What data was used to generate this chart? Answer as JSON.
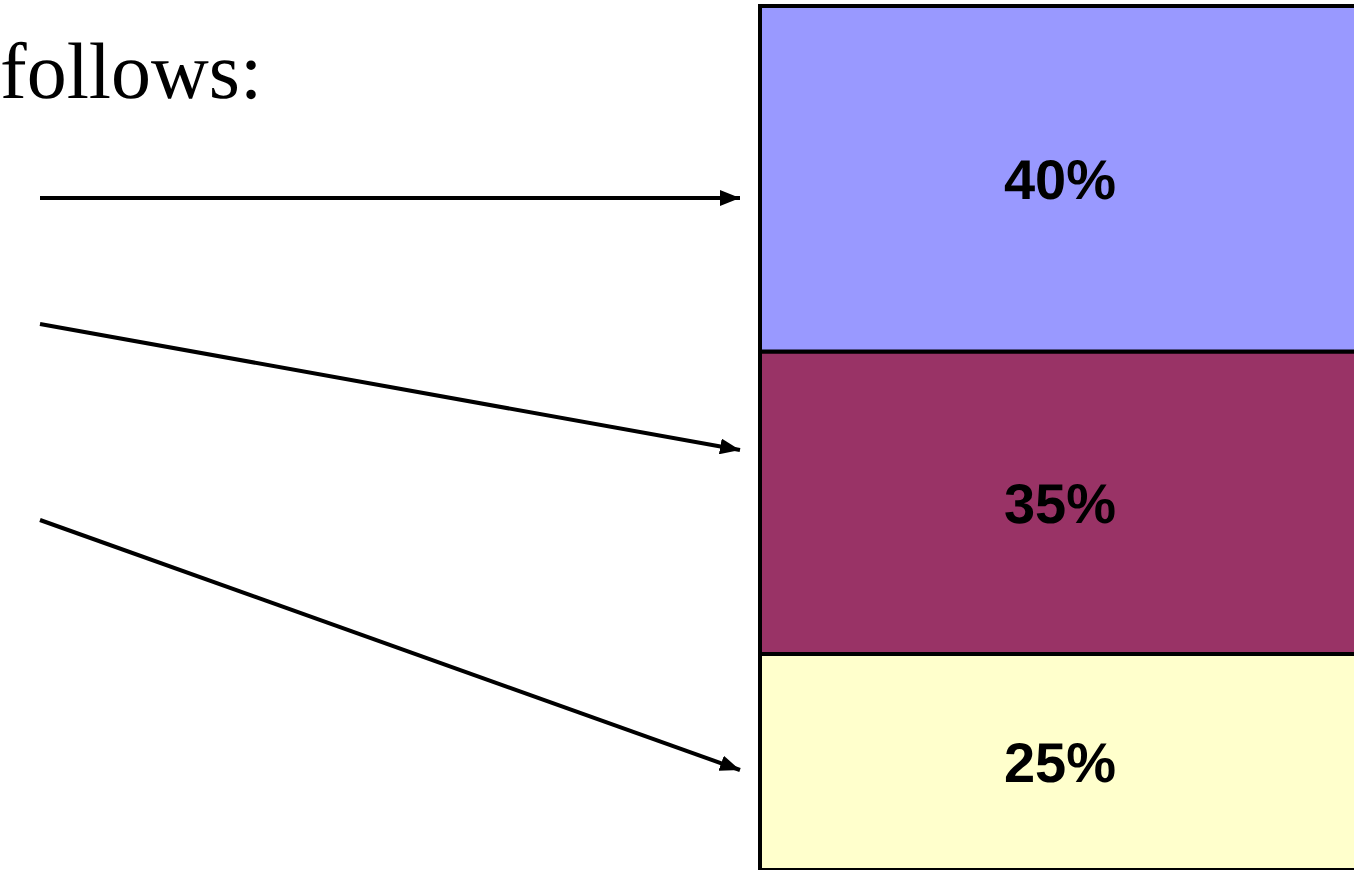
{
  "chart_data": {
    "type": "bar",
    "stacked": true,
    "categories": [
      null
    ],
    "series": [
      {
        "color": "#ffffcc",
        "values": [
          25
        ],
        "value_labels": [
          "25%"
        ]
      },
      {
        "color": "#993366",
        "values": [
          35
        ],
        "value_labels": [
          "35%"
        ]
      },
      {
        "color": "#9999ff",
        "values": [
          40
        ],
        "value_labels": [
          "40%"
        ]
      }
    ],
    "annotations": [
      "follows:"
    ]
  }
}
